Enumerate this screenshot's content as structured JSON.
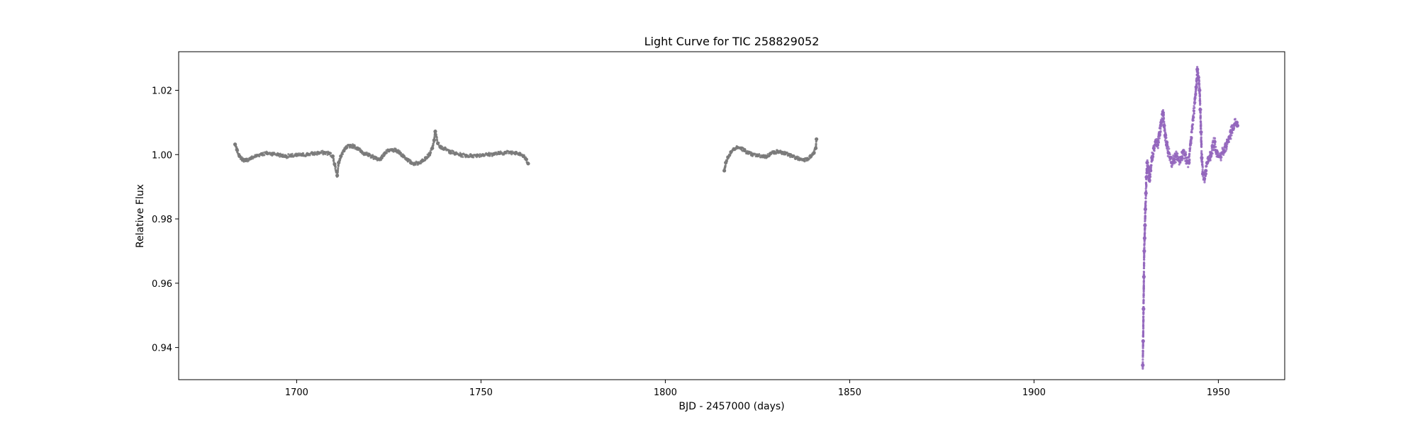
{
  "chart_data": {
    "type": "scatter",
    "title": "Light Curve for TIC 258829052",
    "xlabel": "BJD - 2457000 (days)",
    "ylabel": "Relative Flux",
    "xlim": [
      1668,
      1968
    ],
    "ylim": [
      0.93,
      1.032
    ],
    "xticks": [
      1700,
      1750,
      1800,
      1850,
      1900,
      1950
    ],
    "yticks": [
      0.94,
      0.96,
      0.98,
      1.0,
      1.02
    ],
    "ytick_labels": [
      "0.94",
      "0.96",
      "0.98",
      "1.00",
      "1.02"
    ],
    "grid": false,
    "series": [
      {
        "color": "#7a7a7a",
        "points": [
          [
            1683.3,
            1.0032
          ],
          [
            1683.8,
            1.0015
          ],
          [
            1684.5,
            0.9995
          ],
          [
            1685.3,
            0.9985
          ],
          [
            1686.2,
            0.9982
          ],
          [
            1687.5,
            0.9988
          ],
          [
            1689.0,
            0.9996
          ],
          [
            1690.5,
            1.0002
          ],
          [
            1692.0,
            1.0004
          ],
          [
            1693.5,
            1.0003
          ],
          [
            1695.0,
            1.0
          ],
          [
            1696.0,
            0.9997
          ],
          [
            1697.0,
            0.9995
          ],
          [
            1698.5,
            0.9996
          ],
          [
            1700.0,
            0.9998
          ],
          [
            1701.5,
            0.9999
          ],
          [
            1703.0,
            1.0001
          ],
          [
            1704.5,
            1.0003
          ],
          [
            1706.0,
            1.0005
          ],
          [
            1707.5,
            1.0006
          ],
          [
            1708.8,
            1.0004
          ],
          [
            1709.8,
            0.9995
          ],
          [
            1710.3,
            0.997
          ],
          [
            1711.0,
            0.9935
          ],
          [
            1711.4,
            0.9975
          ],
          [
            1712.0,
            0.9995
          ],
          [
            1712.8,
            1.0012
          ],
          [
            1713.5,
            1.0022
          ],
          [
            1714.5,
            1.0028
          ],
          [
            1715.5,
            1.0026
          ],
          [
            1716.5,
            1.002
          ],
          [
            1717.5,
            1.001
          ],
          [
            1718.5,
            1.0003
          ],
          [
            1719.5,
            0.9998
          ],
          [
            1720.5,
            0.9994
          ],
          [
            1721.5,
            0.9989
          ],
          [
            1722.5,
            0.9985
          ],
          [
            1723.0,
            0.999
          ],
          [
            1724.0,
            1.0005
          ],
          [
            1725.0,
            1.0012
          ],
          [
            1726.0,
            1.0014
          ],
          [
            1727.0,
            1.0012
          ],
          [
            1728.0,
            1.0005
          ],
          [
            1729.0,
            0.9995
          ],
          [
            1730.0,
            0.9985
          ],
          [
            1731.0,
            0.9975
          ],
          [
            1732.0,
            0.9972
          ],
          [
            1733.0,
            0.9974
          ],
          [
            1734.0,
            0.998
          ],
          [
            1735.0,
            0.999
          ],
          [
            1736.0,
            1.0
          ],
          [
            1736.8,
            1.002
          ],
          [
            1737.3,
            1.0045
          ],
          [
            1737.6,
            1.0072
          ],
          [
            1738.3,
            1.0035
          ],
          [
            1739.0,
            1.0025
          ],
          [
            1740.0,
            1.0018
          ],
          [
            1741.5,
            1.001
          ],
          [
            1743.0,
            1.0003
          ],
          [
            1744.5,
            0.9999
          ],
          [
            1746.0,
            0.9997
          ],
          [
            1747.5,
            0.9996
          ],
          [
            1749.0,
            0.9998
          ],
          [
            1750.5,
            0.9999
          ],
          [
            1752.0,
            1.0
          ],
          [
            1753.5,
            1.0002
          ],
          [
            1755.0,
            1.0004
          ],
          [
            1756.5,
            1.0006
          ],
          [
            1758.0,
            1.0007
          ],
          [
            1759.5,
            1.0006
          ],
          [
            1760.5,
            1.0003
          ],
          [
            1761.5,
            0.9995
          ],
          [
            1762.3,
            0.9985
          ],
          [
            1762.8,
            0.9972
          ],
          [
            1816.0,
            0.995
          ],
          [
            1816.4,
            0.9975
          ],
          [
            1817.0,
            0.9992
          ],
          [
            1817.8,
            1.0008
          ],
          [
            1818.6,
            1.0017
          ],
          [
            1819.5,
            1.0022
          ],
          [
            1820.5,
            1.002
          ],
          [
            1821.5,
            1.0013
          ],
          [
            1822.5,
            1.0005
          ],
          [
            1823.5,
            1.0
          ],
          [
            1825.0,
            0.9997
          ],
          [
            1826.5,
            0.9995
          ],
          [
            1827.5,
            0.9994
          ],
          [
            1828.5,
            1.0003
          ],
          [
            1829.5,
            1.0008
          ],
          [
            1830.5,
            1.0009
          ],
          [
            1831.5,
            1.0007
          ],
          [
            1832.5,
            1.0003
          ],
          [
            1833.5,
            1.0
          ],
          [
            1834.5,
            0.9995
          ],
          [
            1835.5,
            0.999
          ],
          [
            1836.5,
            0.9986
          ],
          [
            1837.5,
            0.9984
          ],
          [
            1838.5,
            0.9987
          ],
          [
            1839.5,
            0.9995
          ],
          [
            1840.3,
            1.0005
          ],
          [
            1840.8,
            1.002
          ],
          [
            1841.0,
            1.0048
          ]
        ]
      },
      {
        "color": "#9467bd",
        "points": [
          [
            1929.5,
            0.9345
          ],
          [
            1929.6,
            0.942
          ],
          [
            1929.7,
            0.952
          ],
          [
            1929.8,
            0.962
          ],
          [
            1929.9,
            0.97
          ],
          [
            1930.0,
            0.974
          ],
          [
            1930.1,
            0.978
          ],
          [
            1930.2,
            0.983
          ],
          [
            1930.35,
            0.988
          ],
          [
            1930.5,
            0.993
          ],
          [
            1930.7,
            0.9975
          ],
          [
            1931.0,
            0.996
          ],
          [
            1931.3,
            0.992
          ],
          [
            1931.6,
            0.995
          ],
          [
            1932.0,
            0.999
          ],
          [
            1932.5,
            1.002
          ],
          [
            1933.0,
            1.004
          ],
          [
            1933.5,
            1.003
          ],
          [
            1934.0,
            1.006
          ],
          [
            1934.5,
            1.01
          ],
          [
            1935.0,
            1.013
          ],
          [
            1935.3,
            1.009
          ],
          [
            1935.6,
            1.006
          ],
          [
            1936.0,
            1.003
          ],
          [
            1936.5,
            1.0005
          ],
          [
            1937.0,
            0.999
          ],
          [
            1937.5,
            0.9975
          ],
          [
            1938.0,
            0.9985
          ],
          [
            1938.5,
            0.9995
          ],
          [
            1939.0,
            0.9985
          ],
          [
            1939.5,
            0.998
          ],
          [
            1940.0,
            0.999
          ],
          [
            1940.5,
            1.001
          ],
          [
            1941.0,
            1.0
          ],
          [
            1941.5,
            0.998
          ],
          [
            1942.0,
            0.9975
          ],
          [
            1944.0,
            1.021
          ],
          [
            1944.3,
            1.0265
          ],
          [
            1944.6,
            1.024
          ],
          [
            1944.9,
            1.02
          ],
          [
            1945.1,
            1.014
          ],
          [
            1945.3,
            1.007
          ],
          [
            1945.5,
            0.999
          ],
          [
            1945.8,
            0.994
          ],
          [
            1946.2,
            0.9925
          ],
          [
            1946.6,
            0.995
          ],
          [
            1947.0,
            0.9975
          ],
          [
            1947.5,
            0.9985
          ],
          [
            1948.0,
            1.0005
          ],
          [
            1948.5,
            1.0025
          ],
          [
            1949.0,
            1.004
          ],
          [
            1949.5,
            1.001
          ],
          [
            1950.0,
            0.9995
          ],
          [
            1950.5,
            0.9995
          ],
          [
            1951.0,
            1.0005
          ],
          [
            1951.5,
            1.001
          ],
          [
            1952.0,
            1.0025
          ],
          [
            1952.5,
            1.004
          ],
          [
            1953.0,
            1.0055
          ],
          [
            1953.5,
            1.007
          ],
          [
            1954.0,
            1.008
          ],
          [
            1954.5,
            1.0095
          ],
          [
            1955.0,
            1.01
          ],
          [
            1955.2,
            1.009
          ]
        ]
      }
    ]
  }
}
